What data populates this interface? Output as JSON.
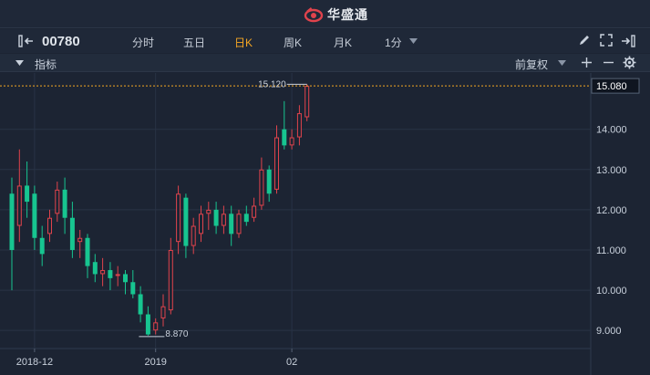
{
  "app": {
    "brand": "华盛通"
  },
  "toolbar": {
    "stock_code": "00780",
    "periods": [
      "分时",
      "五日",
      "日K",
      "周K",
      "月K",
      "1分"
    ],
    "active_period": "日K"
  },
  "indicator_bar": {
    "label": "指标",
    "adjust": "前复权"
  },
  "colors": {
    "up": "#e0434c",
    "down": "#17c590",
    "bg": "#1c2433",
    "accent": "#f5a623"
  },
  "icons": [
    "sidebar-toggle-icon",
    "pencil-icon",
    "expand-icon",
    "exit-icon",
    "collapse-triangle-icon",
    "plus-icon",
    "minus-icon",
    "gear-icon",
    "dropdown-caret-icon"
  ],
  "chart_data": {
    "type": "candlestick",
    "ylim": [
      8.55,
      15.4
    ],
    "yticks": [
      "9.000",
      "10.000",
      "11.000",
      "12.000",
      "13.000",
      "14.000"
    ],
    "current_price": "15.080",
    "high_marker": "15.120",
    "low_marker": "8.870",
    "xticks": [
      {
        "label": "2018-12",
        "index": 3
      },
      {
        "label": "2019",
        "index": 19
      },
      {
        "label": "02",
        "index": 37
      }
    ],
    "candles": [
      [
        12.4,
        11.0,
        12.8,
        10.0
      ],
      [
        11.6,
        12.6,
        13.5,
        11.2
      ],
      [
        12.6,
        12.2,
        13.2,
        11.8
      ],
      [
        12.4,
        11.3,
        12.6,
        11.0
      ],
      [
        11.3,
        10.9,
        11.6,
        10.6
      ],
      [
        11.4,
        11.8,
        12.0,
        11.2
      ],
      [
        11.9,
        12.5,
        12.7,
        11.7
      ],
      [
        12.5,
        11.8,
        12.8,
        11.4
      ],
      [
        11.8,
        11.0,
        12.2,
        10.8
      ],
      [
        11.2,
        11.3,
        11.5,
        10.8
      ],
      [
        11.3,
        10.6,
        11.4,
        10.3
      ],
      [
        10.7,
        10.4,
        10.9,
        10.2
      ],
      [
        10.4,
        10.5,
        10.8,
        10.1
      ],
      [
        10.5,
        10.3,
        10.7,
        10.0
      ],
      [
        10.4,
        10.4,
        10.6,
        10.1
      ],
      [
        10.4,
        10.2,
        10.5,
        9.9
      ],
      [
        10.2,
        9.9,
        10.5,
        9.8
      ],
      [
        9.9,
        9.4,
        10.1,
        9.2
      ],
      [
        9.4,
        8.9,
        9.6,
        8.87
      ],
      [
        9.0,
        9.2,
        9.3,
        8.9
      ],
      [
        9.3,
        9.6,
        9.9,
        9.1
      ],
      [
        9.5,
        11.0,
        11.3,
        9.4
      ],
      [
        11.2,
        12.4,
        12.6,
        10.9
      ],
      [
        12.3,
        11.1,
        12.4,
        10.8
      ],
      [
        11.1,
        11.6,
        11.8,
        10.9
      ],
      [
        11.4,
        11.9,
        12.1,
        11.2
      ],
      [
        11.9,
        12.0,
        12.2,
        11.5
      ],
      [
        12.0,
        11.6,
        12.2,
        11.4
      ],
      [
        11.6,
        11.9,
        12.1,
        11.4
      ],
      [
        11.9,
        11.4,
        12.1,
        11.1
      ],
      [
        11.4,
        11.9,
        12.0,
        11.3
      ],
      [
        11.9,
        11.7,
        12.1,
        11.6
      ],
      [
        11.8,
        12.1,
        12.3,
        11.7
      ],
      [
        12.1,
        13.0,
        13.3,
        12.0
      ],
      [
        13.0,
        12.4,
        13.1,
        12.2
      ],
      [
        12.5,
        13.8,
        14.1,
        12.4
      ],
      [
        14.0,
        13.6,
        14.7,
        13.5
      ],
      [
        13.6,
        13.8,
        14.0,
        13.5
      ],
      [
        13.8,
        14.4,
        14.6,
        13.6
      ],
      [
        14.3,
        15.08,
        15.12,
        14.2
      ]
    ]
  }
}
